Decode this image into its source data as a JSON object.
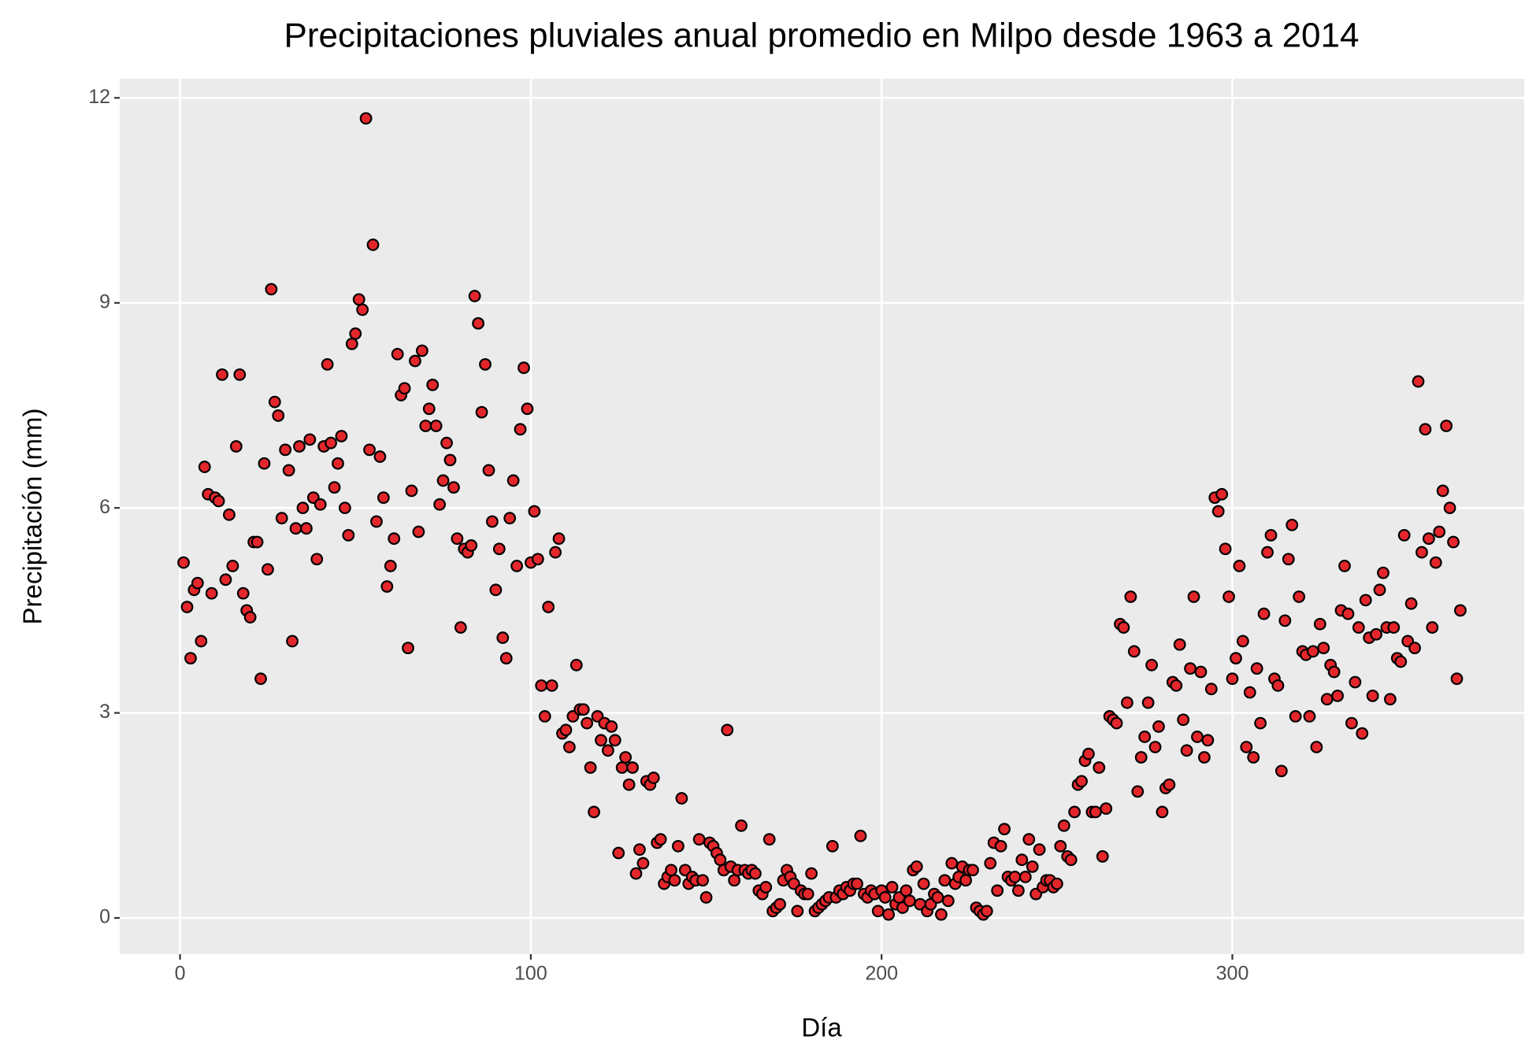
{
  "chart_data": {
    "type": "scatter",
    "title": "Precipitaciones pluviales anual promedio en Milpo desde 1963 a 2014",
    "x_label": "Día",
    "y_label": "Precipitación (mm)",
    "color": "#e3262b",
    "edge_color": "#000000",
    "grid": true,
    "xlim": [
      -17.2,
      383.2
    ],
    "xticks": [
      0,
      100,
      200,
      300
    ],
    "ylim": [
      -0.53,
      12.28
    ],
    "yticks": [
      0,
      3,
      6,
      9,
      12
    ],
    "x": [
      1,
      2,
      3,
      4,
      5,
      6,
      7,
      8,
      9,
      10,
      11,
      12,
      13,
      14,
      15,
      16,
      17,
      18,
      19,
      20,
      21,
      22,
      23,
      24,
      25,
      26,
      27,
      28,
      29,
      30,
      31,
      32,
      33,
      34,
      35,
      36,
      37,
      38,
      39,
      40,
      41,
      42,
      43,
      44,
      45,
      46,
      47,
      48,
      49,
      50,
      51,
      52,
      53,
      54,
      55,
      56,
      57,
      58,
      59,
      60,
      61,
      62,
      63,
      64,
      65,
      66,
      67,
      68,
      69,
      70,
      71,
      72,
      73,
      74,
      75,
      76,
      77,
      78,
      79,
      80,
      81,
      82,
      83,
      84,
      85,
      86,
      87,
      88,
      89,
      90,
      91,
      92,
      93,
      94,
      95,
      96,
      97,
      98,
      99,
      100,
      101,
      102,
      103,
      104,
      105,
      106,
      107,
      108,
      109,
      110,
      111,
      112,
      113,
      114,
      115,
      116,
      117,
      118,
      119,
      120,
      121,
      122,
      123,
      124,
      125,
      126,
      127,
      128,
      129,
      130,
      131,
      132,
      133,
      134,
      135,
      136,
      137,
      138,
      139,
      140,
      141,
      142,
      143,
      144,
      145,
      146,
      147,
      148,
      149,
      150,
      151,
      152,
      153,
      154,
      155,
      156,
      157,
      158,
      159,
      160,
      161,
      162,
      163,
      164,
      165,
      166,
      167,
      168,
      169,
      170,
      171,
      172,
      173,
      174,
      175,
      176,
      177,
      178,
      179,
      180,
      181,
      182,
      183,
      184,
      185,
      186,
      187,
      188,
      189,
      190,
      191,
      192,
      193,
      194,
      195,
      196,
      197,
      198,
      199,
      200,
      201,
      202,
      203,
      204,
      205,
      206,
      207,
      208,
      209,
      210,
      211,
      212,
      213,
      214,
      215,
      216,
      217,
      218,
      219,
      220,
      221,
      222,
      223,
      224,
      225,
      226,
      227,
      228,
      229,
      230,
      231,
      232,
      233,
      234,
      235,
      236,
      237,
      238,
      239,
      240,
      241,
      242,
      243,
      244,
      245,
      246,
      247,
      248,
      249,
      250,
      251,
      252,
      253,
      254,
      255,
      256,
      257,
      258,
      259,
      260,
      261,
      262,
      263,
      264,
      265,
      266,
      267,
      268,
      269,
      270,
      271,
      272,
      273,
      274,
      275,
      276,
      277,
      278,
      279,
      280,
      281,
      282,
      283,
      284,
      285,
      286,
      287,
      288,
      289,
      290,
      291,
      292,
      293,
      294,
      295,
      296,
      297,
      298,
      299,
      300,
      301,
      302,
      303,
      304,
      305,
      306,
      307,
      308,
      309,
      310,
      311,
      312,
      313,
      314,
      315,
      316,
      317,
      318,
      319,
      320,
      321,
      322,
      323,
      324,
      325,
      326,
      327,
      328,
      329,
      330,
      331,
      332,
      333,
      334,
      335,
      336,
      337,
      338,
      339,
      340,
      341,
      342,
      343,
      344,
      345,
      346,
      347,
      348,
      349,
      350,
      351,
      352,
      353,
      354,
      355,
      356,
      357,
      358,
      359,
      360,
      361,
      362,
      363,
      364,
      365
    ],
    "values": [
      5.2,
      4.55,
      3.8,
      4.8,
      4.9,
      4.05,
      6.6,
      6.2,
      4.75,
      6.15,
      6.1,
      7.95,
      4.95,
      5.9,
      5.15,
      6.9,
      7.95,
      4.75,
      4.5,
      4.4,
      5.5,
      5.5,
      3.5,
      6.65,
      5.1,
      9.2,
      7.55,
      7.35,
      5.85,
      6.85,
      6.55,
      4.05,
      5.7,
      6.9,
      6.0,
      5.7,
      7.0,
      6.15,
      5.25,
      6.05,
      6.9,
      8.1,
      6.95,
      6.3,
      6.65,
      7.05,
      6.0,
      5.6,
      8.4,
      8.55,
      9.05,
      8.9,
      11.7,
      6.85,
      9.85,
      5.8,
      6.75,
      6.15,
      4.85,
      5.15,
      5.55,
      8.25,
      7.65,
      7.75,
      3.95,
      6.25,
      8.15,
      5.65,
      8.3,
      7.2,
      7.45,
      7.8,
      7.2,
      6.05,
      6.4,
      6.95,
      6.7,
      6.3,
      5.55,
      4.25,
      5.4,
      5.35,
      5.45,
      9.1,
      8.7,
      7.4,
      8.1,
      6.55,
      5.8,
      4.8,
      5.4,
      4.1,
      3.8,
      5.85,
      6.4,
      5.15,
      7.15,
      8.05,
      7.45,
      5.2,
      5.95,
      5.25,
      3.4,
      2.95,
      4.55,
      3.4,
      5.35,
      5.55,
      2.7,
      2.75,
      2.5,
      2.95,
      3.7,
      3.05,
      3.05,
      2.85,
      2.2,
      1.55,
      2.95,
      2.6,
      2.85,
      2.45,
      2.8,
      2.6,
      0.95,
      2.2,
      2.35,
      1.95,
      2.2,
      0.65,
      1.0,
      0.8,
      2.0,
      1.95,
      2.05,
      1.1,
      1.15,
      0.5,
      0.6,
      0.7,
      0.55,
      1.05,
      1.75,
      0.7,
      0.5,
      0.6,
      0.55,
      1.15,
      0.55,
      0.3,
      1.1,
      1.05,
      0.95,
      0.85,
      0.7,
      2.75,
      0.75,
      0.55,
      0.7,
      1.35,
      0.7,
      0.65,
      0.7,
      0.65,
      0.4,
      0.35,
      0.45,
      1.15,
      0.1,
      0.15,
      0.2,
      0.55,
      0.7,
      0.6,
      0.5,
      0.1,
      0.4,
      0.35,
      0.35,
      0.65,
      0.1,
      0.15,
      0.2,
      0.25,
      0.3,
      1.05,
      0.3,
      0.4,
      0.35,
      0.45,
      0.4,
      0.5,
      0.5,
      1.2,
      0.35,
      0.3,
      0.4,
      0.35,
      0.1,
      0.4,
      0.3,
      0.05,
      0.45,
      0.2,
      0.3,
      0.15,
      0.4,
      0.25,
      0.7,
      0.75,
      0.2,
      0.5,
      0.1,
      0.2,
      0.35,
      0.3,
      0.05,
      0.55,
      0.25,
      0.8,
      0.5,
      0.6,
      0.75,
      0.55,
      0.7,
      0.7,
      0.15,
      0.1,
      0.05,
      0.1,
      0.8,
      1.1,
      0.4,
      1.05,
      1.3,
      0.6,
      0.55,
      0.6,
      0.4,
      0.85,
      0.6,
      1.15,
      0.75,
      0.35,
      1.0,
      0.45,
      0.55,
      0.55,
      0.45,
      0.5,
      1.05,
      1.35,
      0.9,
      0.85,
      1.55,
      1.95,
      2.0,
      2.3,
      2.4,
      1.55,
      1.55,
      2.2,
      0.9,
      1.6,
      2.95,
      2.9,
      2.85,
      4.3,
      4.25,
      3.15,
      4.7,
      3.9,
      1.85,
      2.35,
      2.65,
      3.15,
      3.7,
      2.5,
      2.8,
      1.55,
      1.9,
      1.95,
      3.45,
      3.4,
      4.0,
      2.9,
      2.45,
      3.65,
      4.7,
      2.65,
      3.6,
      2.35,
      2.6,
      3.35,
      6.15,
      5.95,
      6.2,
      5.4,
      4.7,
      3.5,
      3.8,
      5.15,
      4.05,
      2.5,
      3.3,
      2.35,
      3.65,
      2.85,
      4.45,
      5.35,
      5.6,
      3.5,
      3.4,
      2.15,
      4.35,
      5.25,
      5.75,
      2.95,
      4.7,
      3.9,
      3.85,
      2.95,
      3.9,
      2.5,
      4.3,
      3.95,
      3.2,
      3.7,
      3.6,
      3.25,
      4.5,
      5.15,
      4.45,
      2.85,
      3.45,
      4.25,
      2.7,
      4.65,
      4.1,
      3.25,
      4.15,
      4.8,
      5.05,
      4.25,
      3.2,
      4.25,
      3.8,
      3.75,
      5.6,
      4.05,
      4.6,
      3.95,
      7.85,
      5.35,
      7.15,
      5.55,
      4.25,
      5.2,
      5.65,
      6.25,
      7.2,
      6.0,
      5.5,
      3.5,
      4.5
    ]
  }
}
